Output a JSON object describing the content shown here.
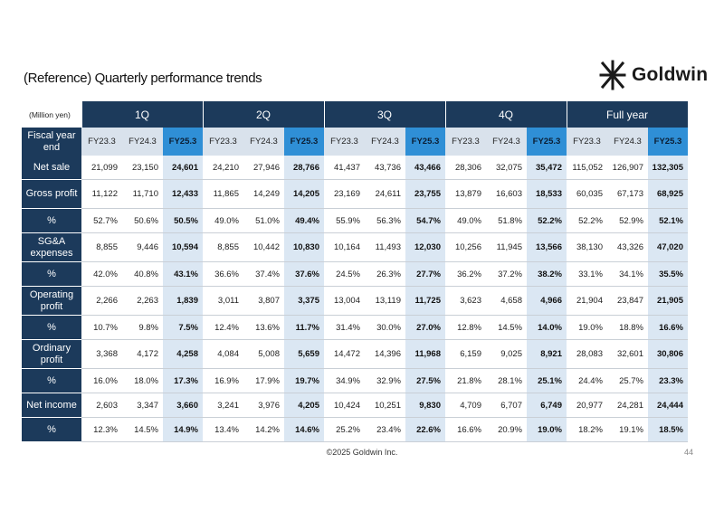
{
  "title": "(Reference) Quarterly performance trends",
  "logo_text": "Goldwin",
  "unit_label": "(Million yen)",
  "periods": [
    "1Q",
    "2Q",
    "3Q",
    "4Q",
    "Full year"
  ],
  "years": [
    "FY23.3",
    "FY24.3",
    "FY25.3"
  ],
  "header_label": "Fiscal year end",
  "rows": [
    {
      "label": "Net sale",
      "values": [
        "21,099",
        "23,150",
        "24,601",
        "24,210",
        "27,946",
        "28,766",
        "41,437",
        "43,736",
        "43,466",
        "28,306",
        "32,075",
        "35,472",
        "115,052",
        "126,907",
        "132,305"
      ]
    },
    {
      "label": "Gross profit",
      "values": [
        "11,122",
        "11,710",
        "12,433",
        "11,865",
        "14,249",
        "14,205",
        "23,169",
        "24,611",
        "23,755",
        "13,879",
        "16,603",
        "18,533",
        "60,035",
        "67,173",
        "68,925"
      ]
    },
    {
      "label": "%",
      "values": [
        "52.7%",
        "50.6%",
        "50.5%",
        "49.0%",
        "51.0%",
        "49.4%",
        "55.9%",
        "56.3%",
        "54.7%",
        "49.0%",
        "51.8%",
        "52.2%",
        "52.2%",
        "52.9%",
        "52.1%"
      ]
    },
    {
      "label": "SG&A expenses",
      "values": [
        "8,855",
        "9,446",
        "10,594",
        "8,855",
        "10,442",
        "10,830",
        "10,164",
        "11,493",
        "12,030",
        "10,256",
        "11,945",
        "13,566",
        "38,130",
        "43,326",
        "47,020"
      ]
    },
    {
      "label": "%",
      "values": [
        "42.0%",
        "40.8%",
        "43.1%",
        "36.6%",
        "37.4%",
        "37.6%",
        "24.5%",
        "26.3%",
        "27.7%",
        "36.2%",
        "37.2%",
        "38.2%",
        "33.1%",
        "34.1%",
        "35.5%"
      ]
    },
    {
      "label": "Operating profit",
      "values": [
        "2,266",
        "2,263",
        "1,839",
        "3,011",
        "3,807",
        "3,375",
        "13,004",
        "13,119",
        "11,725",
        "3,623",
        "4,658",
        "4,966",
        "21,904",
        "23,847",
        "21,905"
      ]
    },
    {
      "label": "%",
      "values": [
        "10.7%",
        "9.8%",
        "7.5%",
        "12.4%",
        "13.6%",
        "11.7%",
        "31.4%",
        "30.0%",
        "27.0%",
        "12.8%",
        "14.5%",
        "14.0%",
        "19.0%",
        "18.8%",
        "16.6%"
      ]
    },
    {
      "label": "Ordinary profit",
      "values": [
        "3,368",
        "4,172",
        "4,258",
        "4,084",
        "5,008",
        "5,659",
        "14,472",
        "14,396",
        "11,968",
        "6,159",
        "9,025",
        "8,921",
        "28,083",
        "32,601",
        "30,806"
      ]
    },
    {
      "label": "%",
      "values": [
        "16.0%",
        "18.0%",
        "17.3%",
        "16.9%",
        "17.9%",
        "19.7%",
        "34.9%",
        "32.9%",
        "27.5%",
        "21.8%",
        "28.1%",
        "25.1%",
        "24.4%",
        "25.7%",
        "23.3%"
      ]
    },
    {
      "label": "Net income",
      "values": [
        "2,603",
        "3,347",
        "3,660",
        "3,241",
        "3,976",
        "4,205",
        "10,424",
        "10,251",
        "9,830",
        "4,709",
        "6,707",
        "6,749",
        "20,977",
        "24,281",
        "24,444"
      ]
    },
    {
      "label": "%",
      "values": [
        "12.3%",
        "14.5%",
        "14.9%",
        "13.4%",
        "14.2%",
        "14.6%",
        "25.2%",
        "23.4%",
        "22.6%",
        "16.6%",
        "20.9%",
        "19.0%",
        "18.2%",
        "19.1%",
        "18.5%"
      ]
    }
  ],
  "footer": "©2025 Goldwin Inc.",
  "page_number": "44",
  "colors": {
    "header": "#1c3a5b",
    "highlight_header": "#2f8fd6",
    "highlight_cell": "#dbe7f3",
    "subheader": "#d9e2ec"
  }
}
